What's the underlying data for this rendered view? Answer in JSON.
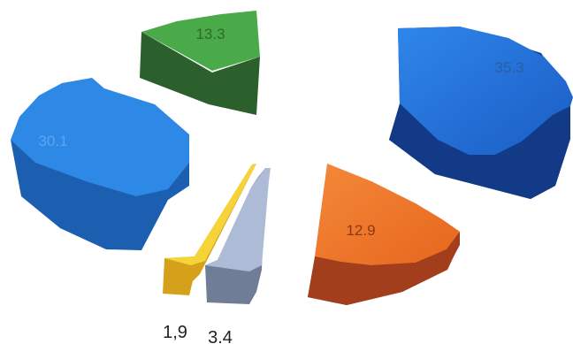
{
  "chart_data": {
    "type": "pie",
    "style": "3d-exploded",
    "slices": [
      {
        "label": "35.3",
        "value": 35.3,
        "color": "#1f5fbf"
      },
      {
        "label": "12.9",
        "value": 12.9,
        "color": "#f07a2a"
      },
      {
        "label": "3.4",
        "value": 3.4,
        "color": "#a7b5cf"
      },
      {
        "label": "1,9",
        "value": 1.9,
        "color": "#f3d23a"
      },
      {
        "label": "30.1",
        "value": 30.1,
        "color": "#2f86e0"
      },
      {
        "label": "13.3",
        "value": 13.3,
        "color": "#49ab47"
      }
    ]
  }
}
